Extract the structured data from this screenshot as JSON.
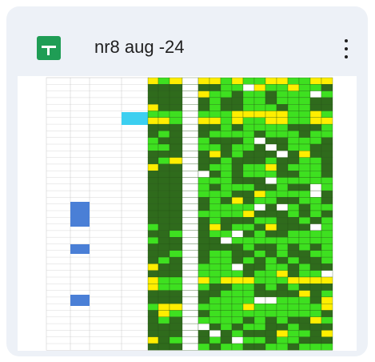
{
  "file": {
    "name": "nr8 aug -24"
  }
}
